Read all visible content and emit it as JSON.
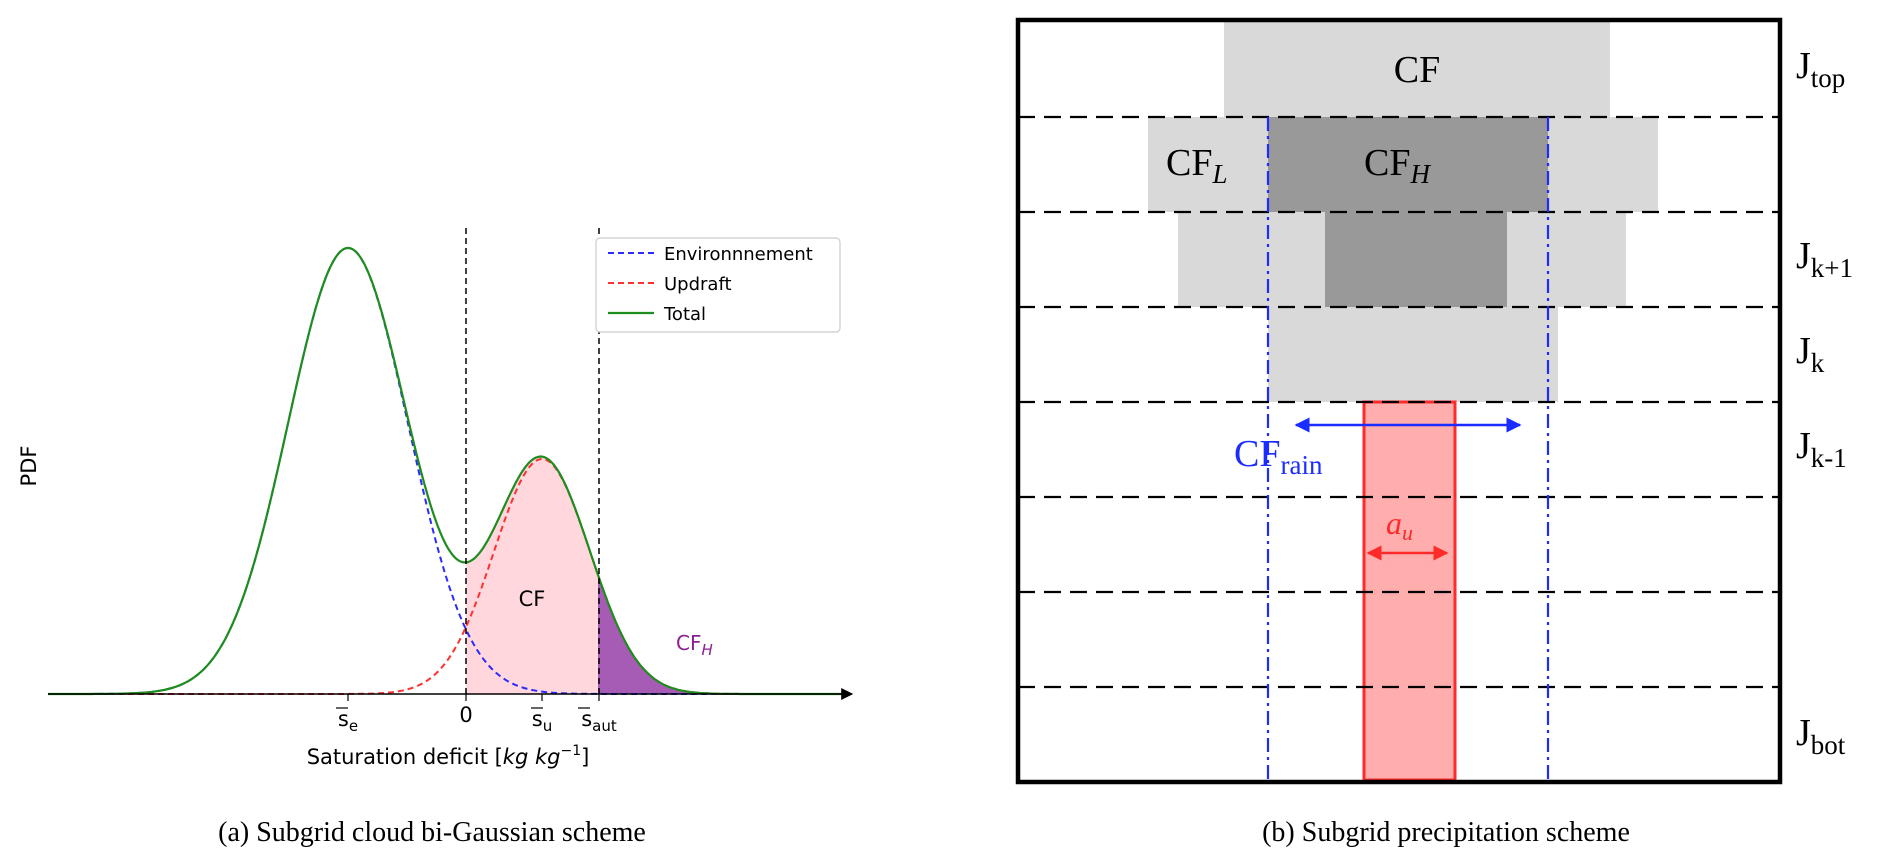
{
  "panel_a": {
    "caption": "(a) Subgrid cloud bi-Gaussian scheme",
    "ylabel": "PDF",
    "xlabel": "Saturation deficit [kg kg⁻¹]",
    "ticks": {
      "s_e": "s̄e",
      "zero": "0",
      "s_u": "s̄u",
      "s_aut": "s̄aut"
    },
    "legend": [
      {
        "label": "Environnnement",
        "color": "#2b2bff",
        "style": "dashed"
      },
      {
        "label": "Updraft",
        "color": "#ff3030",
        "style": "dashed"
      },
      {
        "label": "Total",
        "color": "#1e8c1e",
        "style": "solid"
      }
    ],
    "annotations": {
      "cf": "CF",
      "cf_h": "CF_H"
    },
    "colors": {
      "cf_fill": "#ffd7dd",
      "cf_h_fill": "#a65cb4",
      "cf_h_text": "#8b1f93"
    }
  },
  "panel_b": {
    "caption": "(b) Subgrid precipitation scheme",
    "layers": [
      "J_top",
      "",
      "J_k+1",
      "J_k",
      "J_k-1",
      "",
      "",
      "J_bot"
    ],
    "labels": {
      "cf": "CF",
      "cf_l": "CF_L",
      "cf_h": "CF_H",
      "cf_rain": "CF_rain",
      "a_u": "a_u"
    },
    "colors": {
      "light_gray": "#d9d9d9",
      "dark_gray": "#999999",
      "rain_blue": "#1a2cff",
      "updraft_red": "#ff2a2a",
      "updraft_fill": "#ffadad"
    }
  }
}
